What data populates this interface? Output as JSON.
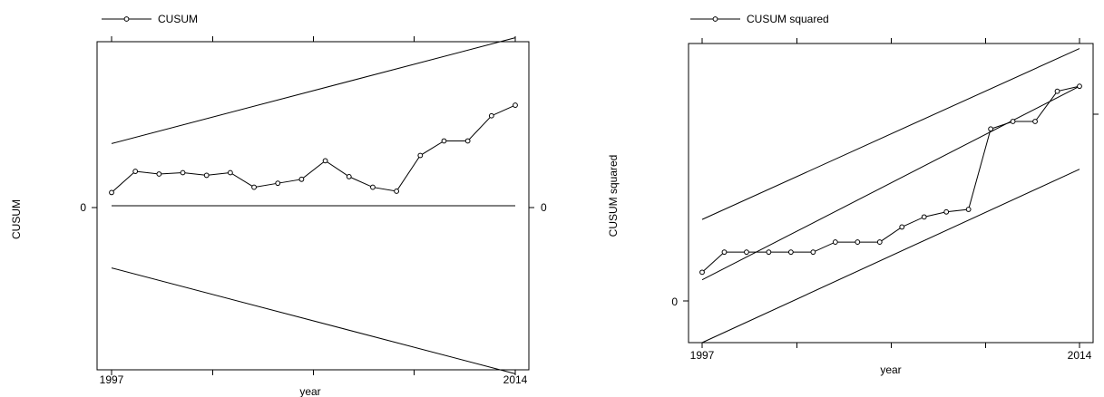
{
  "chart_data": [
    {
      "type": "line",
      "legend": "CUSUM",
      "ylabel": "CUSUM",
      "xlabel": "year",
      "x_tick_labels": [
        "1997",
        "2014"
      ],
      "y_tick_labels": [
        "0"
      ],
      "right_y_tick_labels": [
        "0"
      ],
      "xlim": [
        1997,
        2014
      ],
      "ylim": [
        -12.4,
        12.4
      ],
      "x": [
        1997,
        1998,
        1999,
        2000,
        2001,
        2002,
        2003,
        2004,
        2005,
        2006,
        2007,
        2008,
        2009,
        2010,
        2011,
        2012,
        2013,
        2014
      ],
      "series": [
        {
          "values": [
            1.0,
            2.6,
            2.4,
            2.5,
            2.3,
            2.5,
            1.4,
            1.7,
            2.0,
            3.4,
            2.2,
            1.4,
            1.1,
            3.8,
            4.9,
            4.9,
            6.8,
            7.6
          ]
        }
      ],
      "bounds": {
        "upper": {
          "x": [
            1997,
            2014
          ],
          "y": [
            4.7,
            12.7
          ]
        },
        "zero": {
          "x": [
            1997,
            2014
          ],
          "y": [
            0,
            0
          ]
        },
        "lower": {
          "x": [
            1997,
            2014
          ],
          "y": [
            -4.7,
            -12.7
          ]
        }
      }
    },
    {
      "type": "line",
      "legend": "CUSUM squared",
      "ylabel": "CUSUM squared",
      "xlabel": "year",
      "x_tick_labels": [
        "1997",
        "2014"
      ],
      "y_tick_labels": [
        "0"
      ],
      "right_y_tick_labels": [
        ""
      ],
      "xlim": [
        1997,
        2014
      ],
      "ylim": [
        -0.14,
        1.05
      ],
      "x": [
        1997,
        1998,
        1999,
        2000,
        2001,
        2002,
        2003,
        2004,
        2005,
        2006,
        2007,
        2008,
        2009,
        2010,
        2011,
        2012,
        2013,
        2014
      ],
      "series": [
        {
          "values": [
            0.14,
            0.22,
            0.22,
            0.22,
            0.22,
            0.22,
            0.26,
            0.26,
            0.26,
            0.32,
            0.36,
            0.38,
            0.39,
            0.71,
            0.74,
            0.74,
            0.86,
            0.88
          ]
        }
      ],
      "bounds": {
        "upper": {
          "x": [
            1997,
            2014
          ],
          "y": [
            0.35,
            1.03
          ]
        },
        "mean": {
          "x": [
            1997,
            2014
          ],
          "y": [
            0.11,
            0.88
          ]
        },
        "lower": {
          "x": [
            1997,
            2014
          ],
          "y": [
            -0.14,
            0.55
          ]
        }
      }
    }
  ]
}
